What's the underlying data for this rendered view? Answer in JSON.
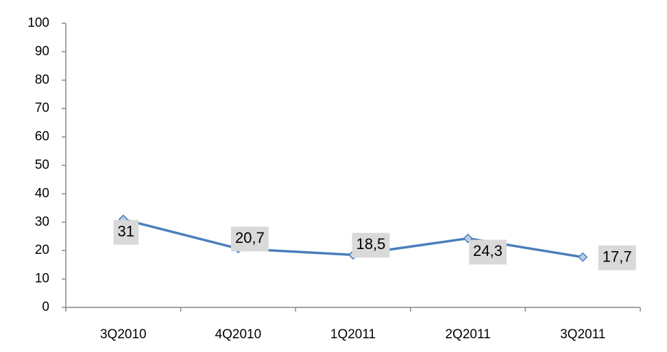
{
  "chart_data": {
    "type": "line",
    "categories": [
      "3Q2010",
      "4Q2010",
      "1Q2011",
      "2Q2011",
      "3Q2011"
    ],
    "series": [
      {
        "color": "#4a7ebb",
        "values": [
          31,
          20.7,
          18.5,
          24.3,
          17.7
        ],
        "value_labels": [
          "31",
          "20,7",
          "18,5",
          "24,3",
          "17,7"
        ]
      }
    ],
    "ylim": [
      0,
      100
    ],
    "yticks": [
      0,
      10,
      20,
      30,
      40,
      50,
      60,
      70,
      80,
      90,
      100
    ],
    "grid": false
  }
}
